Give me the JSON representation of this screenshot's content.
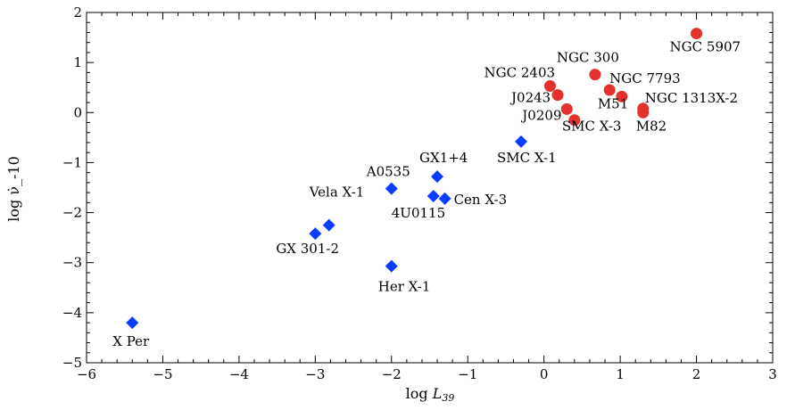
{
  "chart_data": {
    "type": "scatter",
    "xlabel_prefix": "log ",
    "xlabel_var": "L",
    "xlabel_sub": "39",
    "ylabel": "log ν̇_-10",
    "xlim": [
      -6,
      3
    ],
    "ylim": [
      -5,
      2
    ],
    "xticks": [
      -6,
      -5,
      -4,
      -3,
      -2,
      -1,
      0,
      1,
      2,
      3
    ],
    "yticks": [
      -5,
      -4,
      -3,
      -2,
      -1,
      0,
      1,
      2
    ],
    "xtick_labels": [
      "−6",
      "−5",
      "−4",
      "−3",
      "−2",
      "−1",
      "0",
      "1",
      "2",
      "3"
    ],
    "ytick_labels": [
      "−5",
      "−4",
      "−3",
      "−2",
      "−1",
      "0",
      "1",
      "2"
    ],
    "grid": false,
    "series": [
      {
        "marker": "diamond",
        "color": "#0a3cff",
        "points": [
          {
            "label": "X Per",
            "x": -5.4,
            "y": -4.2
          },
          {
            "label": "GX 301-2",
            "x": -3.0,
            "y": -2.42
          },
          {
            "label": "Vela X-1",
            "x": -2.82,
            "y": -2.25
          },
          {
            "label": "Her X-1",
            "x": -2.0,
            "y": -3.07
          },
          {
            "label": "A0535",
            "x": -2.0,
            "y": -1.52
          },
          {
            "label": "4U0115",
            "x": -1.45,
            "y": -1.67
          },
          {
            "label": "Cen X-3",
            "x": -1.3,
            "y": -1.72
          },
          {
            "label": "GX1+4",
            "x": -1.4,
            "y": -1.28
          },
          {
            "label": "SMC X-1",
            "x": -0.3,
            "y": -0.58
          }
        ]
      },
      {
        "marker": "circle",
        "color": "#e4312b",
        "points": [
          {
            "label": "NGC 2403",
            "x": 0.08,
            "y": 0.53
          },
          {
            "label": "J0243",
            "x": 0.18,
            "y": 0.35
          },
          {
            "label": "J0209",
            "x": 0.3,
            "y": 0.07
          },
          {
            "label": "SMC X-3",
            "x": 0.4,
            "y": -0.15
          },
          {
            "label": "NGC 300",
            "x": 0.67,
            "y": 0.76
          },
          {
            "label": "NGC 7793",
            "x": 0.86,
            "y": 0.45
          },
          {
            "label": "M51",
            "x": 1.02,
            "y": 0.32
          },
          {
            "label": "NGC 1313X-2",
            "x": 1.3,
            "y": 0.08
          },
          {
            "label": "M82",
            "x": 1.3,
            "y": 0.0
          },
          {
            "label": "NGC 5907",
            "x": 2.0,
            "y": 1.58
          }
        ]
      }
    ]
  }
}
